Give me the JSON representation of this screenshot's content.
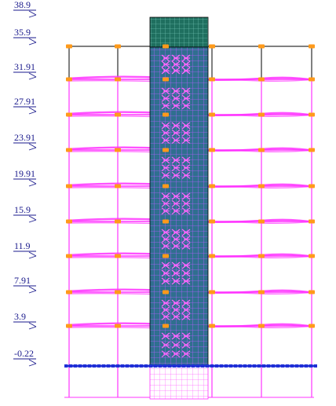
{
  "elevations": [
    {
      "label": "38.9"
    },
    {
      "label": "35.9"
    },
    {
      "label": "31.91"
    },
    {
      "label": "27.91"
    },
    {
      "label": "23.91"
    },
    {
      "label": "19.91"
    },
    {
      "label": "15.9"
    },
    {
      "label": "11.9"
    },
    {
      "label": "7.91"
    },
    {
      "label": "3.9"
    },
    {
      "label": "-0.22"
    }
  ],
  "colors": {
    "frame": "#ff33ff",
    "top_frame": "#000000",
    "core_mesh": "#2a6f66",
    "core_mesh_lines": "#b36bff",
    "joint": "#ff9a1a",
    "ground": "#1f2fd6",
    "elevation_text": "#1a1a8c"
  }
}
